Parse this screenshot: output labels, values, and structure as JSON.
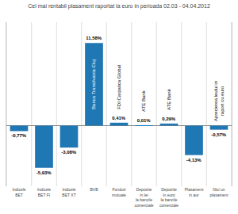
{
  "chart_data": {
    "type": "bar",
    "title": "Cel mai rentabil plasament raportat la euro in perioada 02.03 - 04.04.2012",
    "categories": [
      "Indicele\nBET",
      "Indicele\nBET FI",
      "Indicele\nBET XT",
      "BVB",
      "Fonduri\nmutuale",
      "Depozite\nin lei\nla bancile\ncomerciale",
      "Depozite\nin euro\nla bancile\ncomerciale",
      "Plasament\nin aur",
      "Nici un\nplasament"
    ],
    "values": [
      -0.77,
      -5.93,
      -3.08,
      11.58,
      0.41,
      0.01,
      0.29,
      -4.13,
      -0.57
    ],
    "value_labels": [
      "-0,77%",
      "-5,93%",
      "-3,08%",
      "11,58%",
      "0,41%",
      "0,01%",
      "0,29%",
      "-4,13%",
      "-0,57%"
    ],
    "data_labels": true,
    "ylim": [
      -8.5,
      14.5
    ],
    "tick_labels": "x",
    "grid": true,
    "annotations": [
      {
        "x": "BVB",
        "text": "Banca Transilvania Cluj"
      },
      {
        "x": "Fonduri\nmutuale",
        "text": "FDI Carpatica Global"
      },
      {
        "x": "Depozite\nin lei\nla bancile\ncomerciale",
        "text": "ATE Bank"
      },
      {
        "x": "Depozite\nin euro\nla bancile\ncomerciale",
        "text": "ATE Bank"
      },
      {
        "x": "Nici un\nplasament",
        "text": "Aprecierea leului in\nraport cu euro"
      }
    ]
  }
}
